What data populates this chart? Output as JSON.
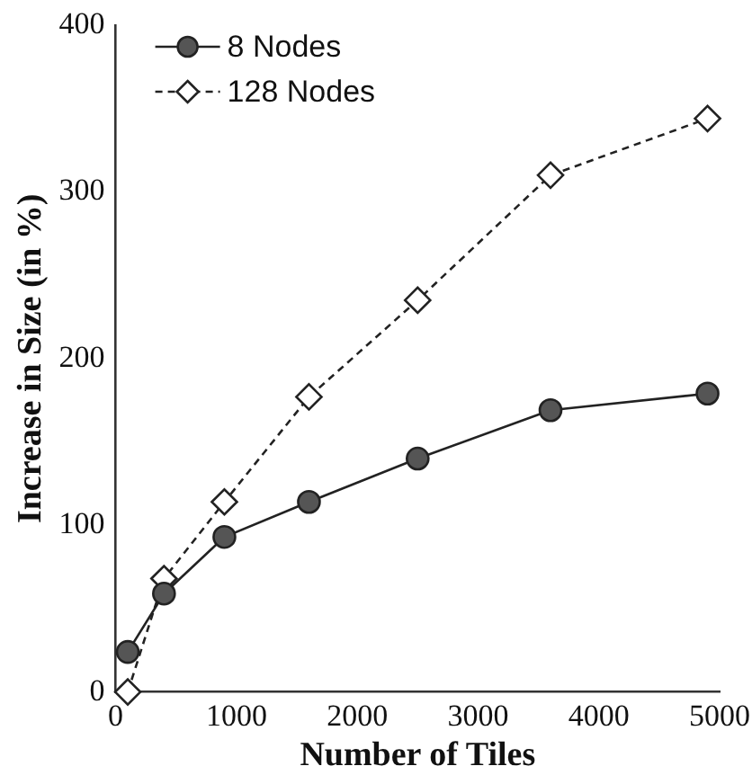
{
  "chart_data": {
    "type": "line",
    "xlabel": "Number of Tiles",
    "ylabel": "Increase in Size (in %)",
    "xlim": [
      0,
      5000
    ],
    "xticks": [
      0,
      1000,
      2000,
      3000,
      4000,
      5000
    ],
    "ylim": [
      0,
      400
    ],
    "yticks": [
      0,
      100,
      200,
      300,
      400
    ],
    "grid": false,
    "legend": "top left",
    "series": [
      {
        "name": "8 Nodes",
        "color": "#222222",
        "marker": "circle",
        "line_style": "solid",
        "x": [
          100,
          400,
          900,
          1600,
          2500,
          3600,
          4900
        ],
        "values": [
          24,
          59,
          93,
          114,
          140,
          169,
          179
        ]
      },
      {
        "name": "128 Nodes",
        "color": "#222222",
        "marker": "diamond",
        "line_style": "dashed",
        "x": [
          100,
          400,
          900,
          1600,
          2500,
          3600,
          4900
        ],
        "values": [
          0,
          68,
          114,
          177,
          235,
          310,
          344
        ]
      }
    ]
  }
}
